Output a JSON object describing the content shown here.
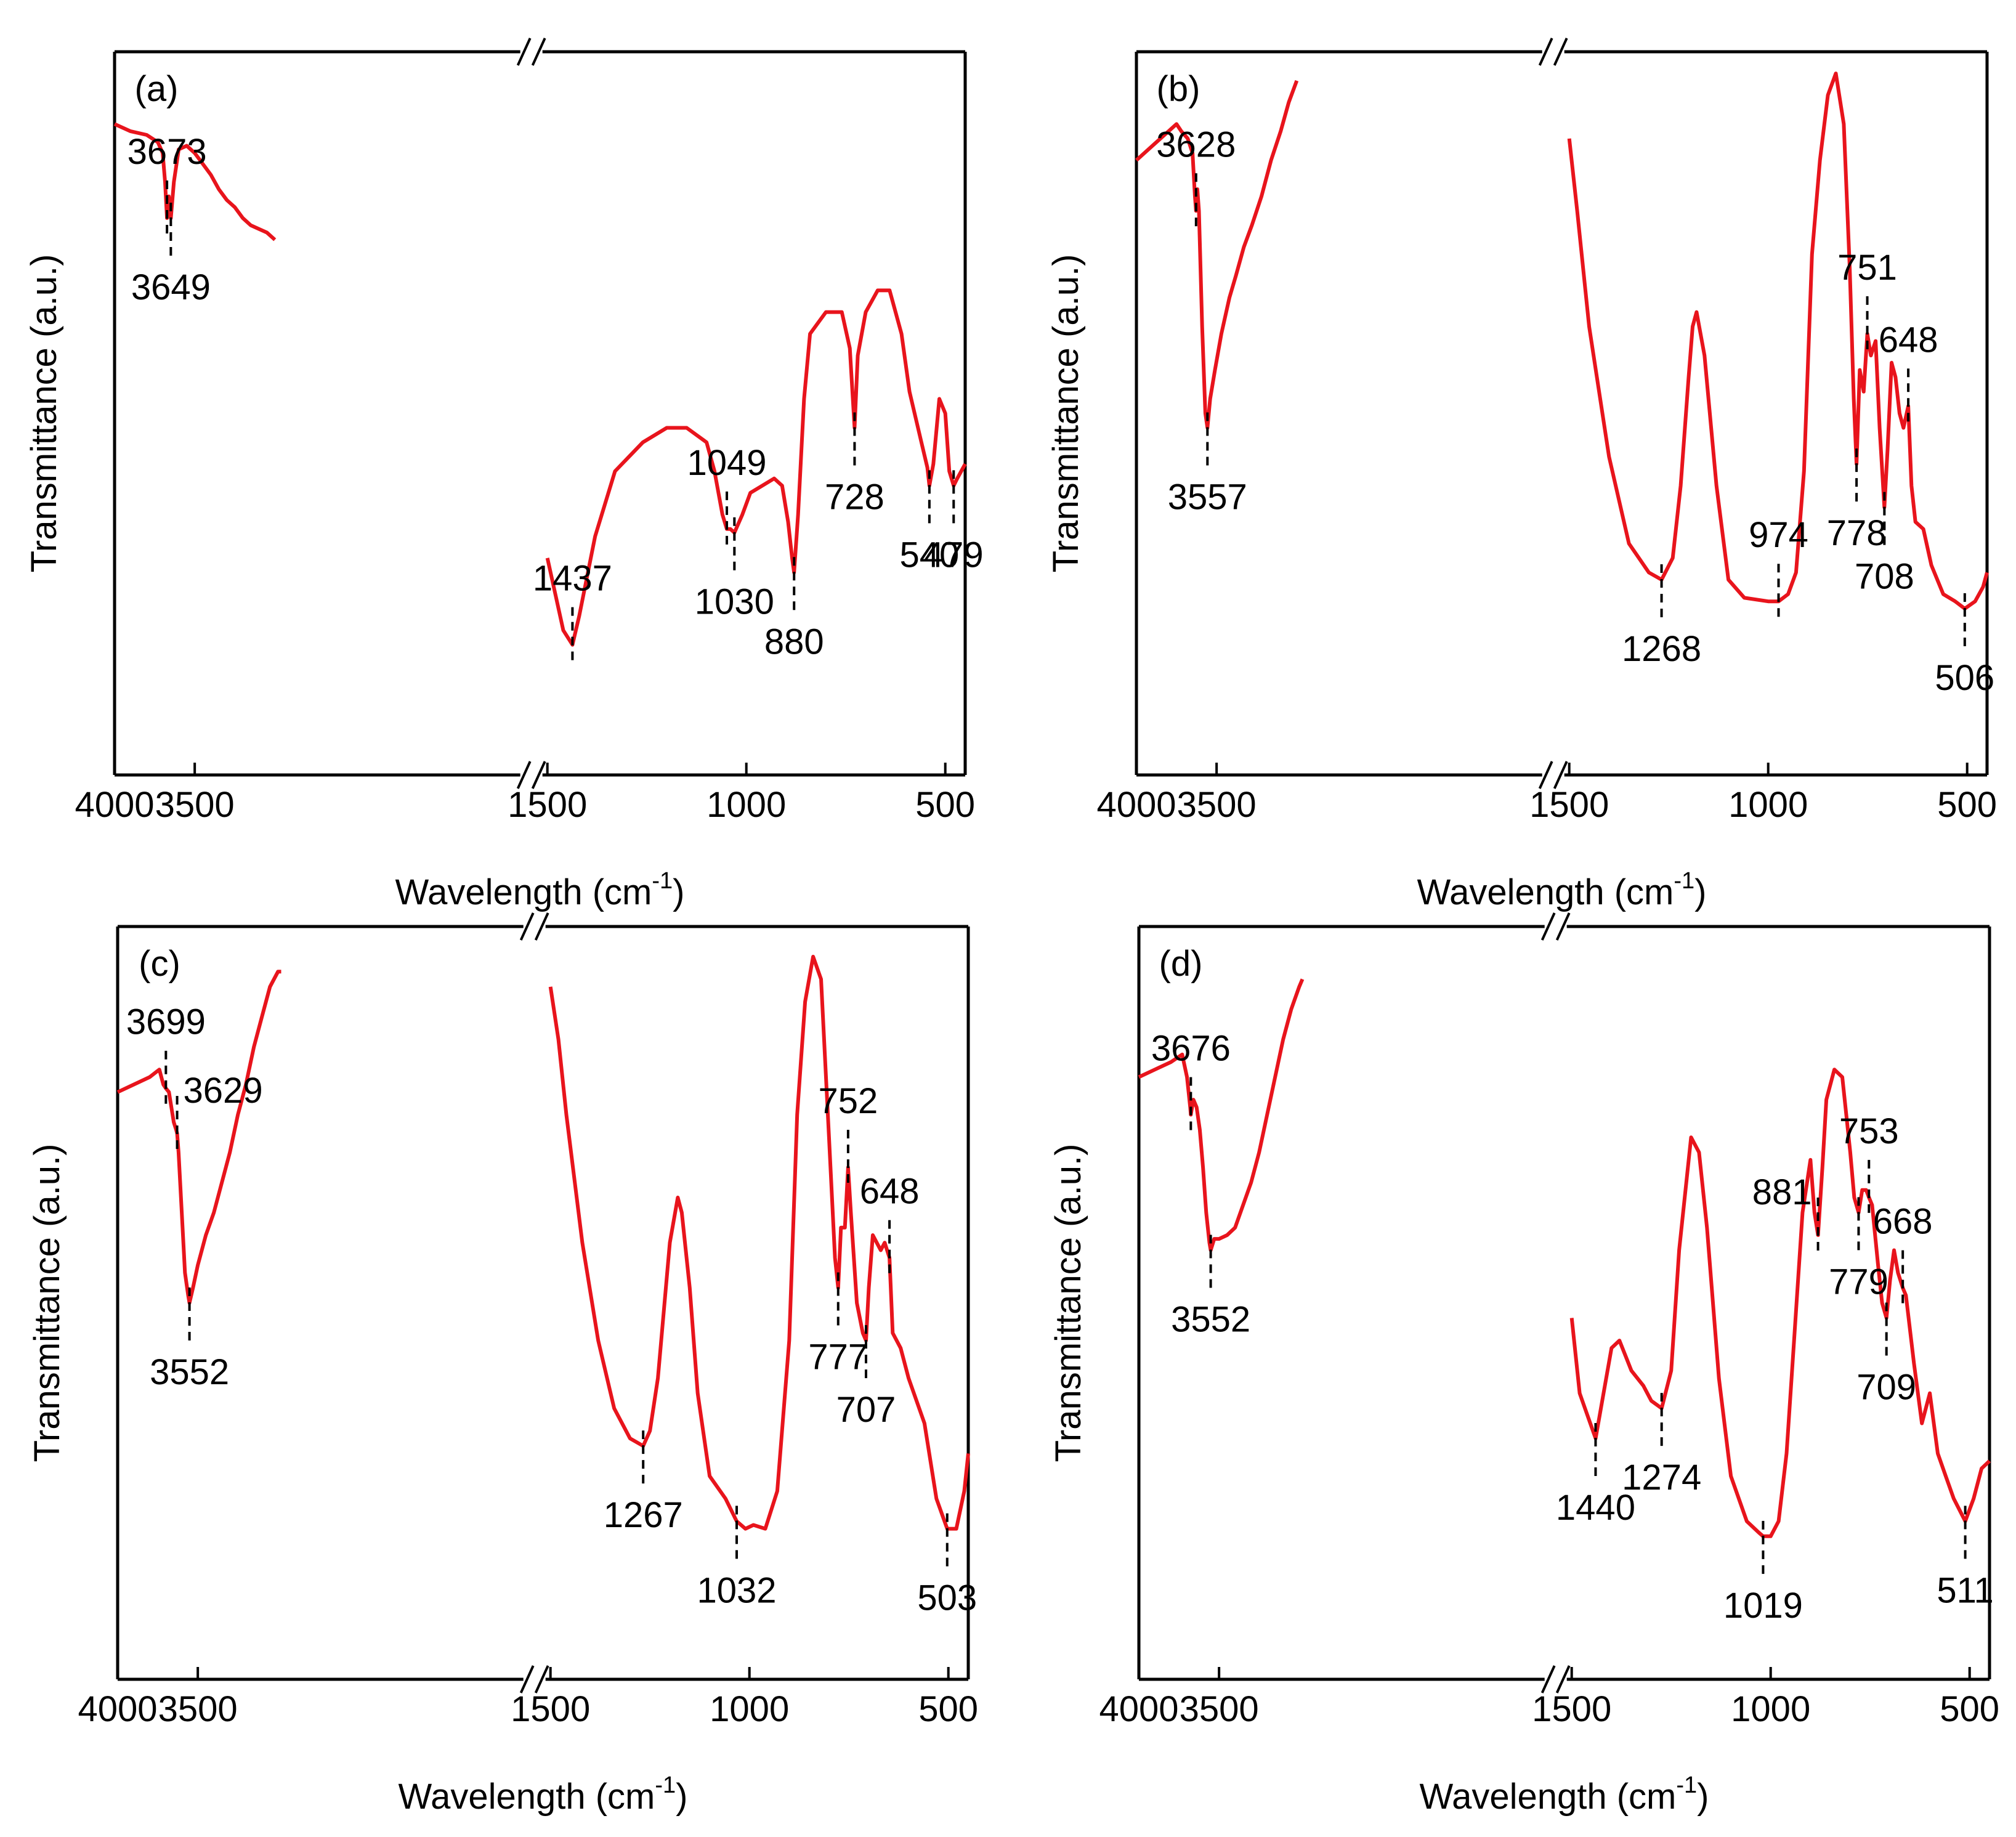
{
  "figure": {
    "colors": {
      "curve": "#e8141c",
      "axis": "#000000",
      "marker": "#000000"
    }
  },
  "chart_data": [
    {
      "type": "line",
      "panel_label": "(a)",
      "xlabel": "Wavelength (cm",
      "xlabel_sup": "-1",
      "xlabel_close": ")",
      "ylabel": "Transmittance (a.u.)",
      "x_segments": [
        [
          4000,
          1500
        ],
        [
          1500,
          450
        ]
      ],
      "xticks": [
        {
          "value": 4000,
          "label": "4000"
        },
        {
          "value": 3500,
          "label": "3500"
        },
        {
          "value": 1500,
          "label": "1500"
        },
        {
          "value": 1000,
          "label": "1000"
        },
        {
          "value": 500,
          "label": "500"
        }
      ],
      "ylim": [
        0,
        100
      ],
      "series": [
        {
          "name": "high-wavenumber",
          "x": [
            4000,
            3900,
            3800,
            3730,
            3700,
            3685,
            3673,
            3662,
            3649,
            3630,
            3600,
            3550,
            3500,
            3450,
            3400,
            3350,
            3300,
            3250,
            3200,
            3150,
            3100,
            3050,
            3000
          ],
          "y": [
            90,
            89,
            88.5,
            87.5,
            86,
            82,
            77,
            80,
            77,
            82,
            86.5,
            87,
            86,
            84.5,
            83,
            81,
            79.5,
            78.5,
            77,
            76,
            75.5,
            75,
            74
          ]
        },
        {
          "name": "low-wavenumber",
          "x": [
            1500,
            1480,
            1460,
            1437,
            1420,
            1380,
            1330,
            1260,
            1200,
            1150,
            1100,
            1080,
            1060,
            1049,
            1040,
            1030,
            1010,
            990,
            960,
            930,
            910,
            895,
            885,
            880,
            870,
            855,
            840,
            800,
            760,
            740,
            728,
            720,
            700,
            670,
            640,
            610,
            590,
            560,
            545,
            540,
            530,
            515,
            500,
            490,
            479,
            470,
            450
          ],
          "y": [
            30,
            25,
            20,
            18,
            22,
            33,
            42,
            46,
            48,
            48,
            46,
            42,
            36,
            34,
            34,
            33.5,
            36,
            39,
            40,
            41,
            40,
            35,
            30,
            28,
            36,
            52,
            61,
            64,
            64,
            59,
            48,
            58,
            64,
            67,
            67,
            61,
            53,
            46,
            42.5,
            40,
            43,
            52,
            50,
            42,
            40,
            41,
            43
          ]
        }
      ],
      "annotations": [
        {
          "label": "3673",
          "x": 3673,
          "pos": "above"
        },
        {
          "label": "3649",
          "x": 3649,
          "pos": "below"
        },
        {
          "label": "1437",
          "x": 1437,
          "pos": "above"
        },
        {
          "label": "1049",
          "x": 1049,
          "pos": "above"
        },
        {
          "label": "1030",
          "x": 1030,
          "pos": "below"
        },
        {
          "label": "880",
          "x": 880,
          "pos": "below"
        },
        {
          "label": "728",
          "x": 728,
          "pos": "below"
        },
        {
          "label": "540",
          "x": 540,
          "pos": "below"
        },
        {
          "label": "479",
          "x": 479,
          "pos": "below"
        }
      ]
    },
    {
      "type": "line",
      "panel_label": "(b)",
      "xlabel": "Wavelength (cm",
      "xlabel_sup": "-1",
      "xlabel_close": ")",
      "ylabel": "Transmittance (a.u.)",
      "x_segments": [
        [
          4000,
          1500
        ],
        [
          1500,
          450
        ]
      ],
      "xticks": [
        {
          "value": 4000,
          "label": "4000"
        },
        {
          "value": 3500,
          "label": "3500"
        },
        {
          "value": 1500,
          "label": "1500"
        },
        {
          "value": 1000,
          "label": "1000"
        },
        {
          "value": 500,
          "label": "500"
        }
      ],
      "ylim": [
        0,
        100
      ],
      "series": [
        {
          "name": "high-wavenumber",
          "x": [
            4000,
            3900,
            3800,
            3750,
            3720,
            3680,
            3650,
            3635,
            3628,
            3620,
            3610,
            3590,
            3570,
            3557,
            3540,
            3510,
            3470,
            3420,
            3380,
            3330,
            3280,
            3220,
            3160,
            3100,
            3050,
            3000
          ],
          "y": [
            85,
            87,
            89,
            90,
            89,
            88,
            86,
            80,
            78,
            81,
            78,
            62,
            50,
            48,
            52,
            56,
            61,
            66,
            69,
            73,
            76,
            80,
            85,
            89,
            93,
            96
          ]
        },
        {
          "name": "low-wavenumber",
          "x": [
            1500,
            1480,
            1450,
            1400,
            1350,
            1300,
            1268,
            1240,
            1220,
            1200,
            1190,
            1180,
            1160,
            1130,
            1100,
            1060,
            1000,
            974,
            950,
            930,
            910,
            890,
            870,
            850,
            830,
            810,
            795,
            785,
            778,
            770,
            760,
            751,
            742,
            730,
            720,
            708,
            700,
            690,
            680,
            670,
            660,
            648,
            640,
            630,
            610,
            590,
            560,
            530,
            506,
            480,
            460,
            450
          ],
          "y": [
            88,
            78,
            62,
            44,
            32,
            28,
            27,
            30,
            40,
            55,
            62,
            64,
            58,
            40,
            27,
            24.5,
            24,
            24,
            25,
            28,
            42,
            72,
            85,
            94,
            97,
            90,
            70,
            52,
            43,
            56,
            53,
            61,
            58,
            60,
            48,
            37,
            45,
            57,
            55,
            50,
            48,
            51,
            40,
            35,
            34,
            29,
            25,
            24,
            23,
            24,
            26,
            28
          ]
        }
      ],
      "annotations": [
        {
          "label": "3628",
          "x": 3628,
          "pos": "above"
        },
        {
          "label": "3557",
          "x": 3557,
          "pos": "below"
        },
        {
          "label": "1268",
          "x": 1268,
          "pos": "below"
        },
        {
          "label": "974",
          "x": 974,
          "pos": "above"
        },
        {
          "label": "778",
          "x": 778,
          "pos": "below"
        },
        {
          "label": "751",
          "x": 751,
          "pos": "above"
        },
        {
          "label": "708",
          "x": 708,
          "pos": "below"
        },
        {
          "label": "648",
          "x": 648,
          "pos": "above"
        },
        {
          "label": "506",
          "x": 506,
          "pos": "below"
        }
      ]
    },
    {
      "type": "line",
      "panel_label": "(c)",
      "xlabel": "Wavelength (cm",
      "xlabel_sup": "-1",
      "xlabel_close": ")",
      "ylabel": "Transmittance (a.u.)",
      "x_segments": [
        [
          4000,
          1500
        ],
        [
          1500,
          450
        ]
      ],
      "xticks": [
        {
          "value": 4000,
          "label": "4000"
        },
        {
          "value": 3500,
          "label": "3500"
        },
        {
          "value": 1500,
          "label": "1500"
        },
        {
          "value": 1000,
          "label": "1000"
        },
        {
          "value": 500,
          "label": "500"
        }
      ],
      "ylim": [
        0,
        100
      ],
      "series": [
        {
          "name": "high-wavenumber",
          "x": [
            4000,
            3900,
            3800,
            3740,
            3715,
            3699,
            3680,
            3650,
            3635,
            3629,
            3620,
            3600,
            3580,
            3560,
            3552,
            3530,
            3500,
            3450,
            3400,
            3350,
            3300,
            3250,
            3200,
            3150,
            3100,
            3050,
            3000,
            2980
          ],
          "y": [
            78,
            79,
            80,
            81,
            79,
            78.5,
            78,
            74,
            73,
            72.5,
            70,
            62,
            54,
            51,
            50,
            52,
            55,
            59,
            62,
            66,
            70,
            75,
            79,
            84,
            88,
            92,
            94,
            94
          ]
        },
        {
          "name": "low-wavenumber",
          "x": [
            1500,
            1480,
            1460,
            1420,
            1380,
            1340,
            1300,
            1267,
            1250,
            1230,
            1200,
            1180,
            1170,
            1150,
            1130,
            1100,
            1060,
            1032,
            1010,
            990,
            960,
            930,
            900,
            880,
            860,
            840,
            820,
            800,
            785,
            777,
            770,
            760,
            752,
            745,
            730,
            715,
            707,
            700,
            690,
            680,
            670,
            660,
            648,
            640,
            620,
            600,
            560,
            530,
            503,
            480,
            460,
            450
          ],
          "y": [
            92,
            85,
            75,
            58,
            45,
            36,
            32,
            31,
            33,
            40,
            58,
            64,
            62,
            52,
            38,
            27,
            24,
            21,
            20,
            20.5,
            20,
            25,
            45,
            75,
            90,
            96,
            93,
            72,
            56,
            52,
            60,
            60,
            68,
            62,
            50,
            46,
            45,
            52,
            59,
            58,
            57,
            58,
            56,
            46,
            44,
            40,
            34,
            24,
            20,
            20,
            25,
            30
          ]
        }
      ],
      "annotations": [
        {
          "label": "3699",
          "x": 3699,
          "pos": "above"
        },
        {
          "label": "3629",
          "x": 3629,
          "pos": "above-right"
        },
        {
          "label": "3552",
          "x": 3552,
          "pos": "below"
        },
        {
          "label": "1267",
          "x": 1267,
          "pos": "below"
        },
        {
          "label": "1032",
          "x": 1032,
          "pos": "below"
        },
        {
          "label": "777",
          "x": 777,
          "pos": "below"
        },
        {
          "label": "752",
          "x": 752,
          "pos": "above"
        },
        {
          "label": "707",
          "x": 707,
          "pos": "below"
        },
        {
          "label": "648",
          "x": 648,
          "pos": "above"
        },
        {
          "label": "503",
          "x": 503,
          "pos": "below"
        }
      ]
    },
    {
      "type": "line",
      "panel_label": "(d)",
      "xlabel": "Wavelength (cm",
      "xlabel_sup": "-1",
      "xlabel_close": ")",
      "ylabel": "Transmittance (a.u.)",
      "x_segments": [
        [
          4000,
          1500
        ],
        [
          1500,
          450
        ]
      ],
      "xticks": [
        {
          "value": 4000,
          "label": "4000"
        },
        {
          "value": 3500,
          "label": "3500"
        },
        {
          "value": 1500,
          "label": "1500"
        },
        {
          "value": 1000,
          "label": "1000"
        },
        {
          "value": 500,
          "label": "500"
        }
      ],
      "ylim": [
        0,
        100
      ],
      "series": [
        {
          "name": "high-wavenumber",
          "x": [
            4000,
            3900,
            3800,
            3730,
            3700,
            3680,
            3676,
            3660,
            3640,
            3620,
            3600,
            3580,
            3560,
            3552,
            3530,
            3500,
            3450,
            3400,
            3350,
            3300,
            3250,
            3200,
            3150,
            3100,
            3050,
            3000,
            2980
          ],
          "y": [
            80,
            81,
            82,
            83,
            80,
            76,
            75,
            77,
            76,
            73,
            68,
            62,
            58,
            57,
            58.5,
            58.5,
            59,
            60,
            63,
            66,
            70,
            75,
            80,
            85,
            89,
            92,
            93
          ]
        },
        {
          "name": "low-wavenumber",
          "x": [
            1500,
            1480,
            1460,
            1440,
            1420,
            1400,
            1380,
            1350,
            1320,
            1300,
            1274,
            1250,
            1230,
            1200,
            1180,
            1160,
            1130,
            1100,
            1060,
            1030,
            1019,
            1000,
            980,
            960,
            940,
            920,
            900,
            890,
            881,
            870,
            860,
            840,
            820,
            800,
            790,
            779,
            770,
            760,
            753,
            745,
            730,
            720,
            709,
            700,
            690,
            680,
            668,
            660,
            640,
            620,
            600,
            580,
            560,
            540,
            511,
            490,
            470,
            450
          ],
          "y": [
            48,
            38,
            35,
            32,
            38,
            44,
            45,
            41,
            39,
            37,
            36,
            41,
            57,
            72,
            70,
            60,
            40,
            27,
            21,
            19.5,
            19,
            19,
            21,
            30,
            46,
            62,
            69,
            62,
            59,
            68,
            77,
            81,
            80,
            70,
            64,
            62,
            65,
            65,
            64,
            63,
            55,
            50,
            48,
            53,
            57,
            54,
            52,
            51,
            42,
            34,
            38,
            30,
            27,
            24,
            21,
            24,
            28,
            29
          ]
        }
      ],
      "annotations": [
        {
          "label": "3676",
          "x": 3676,
          "pos": "above"
        },
        {
          "label": "3552",
          "x": 3552,
          "pos": "below"
        },
        {
          "label": "1440",
          "x": 1440,
          "pos": "below"
        },
        {
          "label": "1274",
          "x": 1274,
          "pos": "below"
        },
        {
          "label": "1019",
          "x": 1019,
          "pos": "below"
        },
        {
          "label": "881",
          "x": 881,
          "pos": "above-left"
        },
        {
          "label": "779",
          "x": 779,
          "pos": "below"
        },
        {
          "label": "753",
          "x": 753,
          "pos": "above"
        },
        {
          "label": "709",
          "x": 709,
          "pos": "below"
        },
        {
          "label": "668",
          "x": 668,
          "pos": "above"
        },
        {
          "label": "511",
          "x": 511,
          "pos": "below"
        }
      ]
    }
  ]
}
